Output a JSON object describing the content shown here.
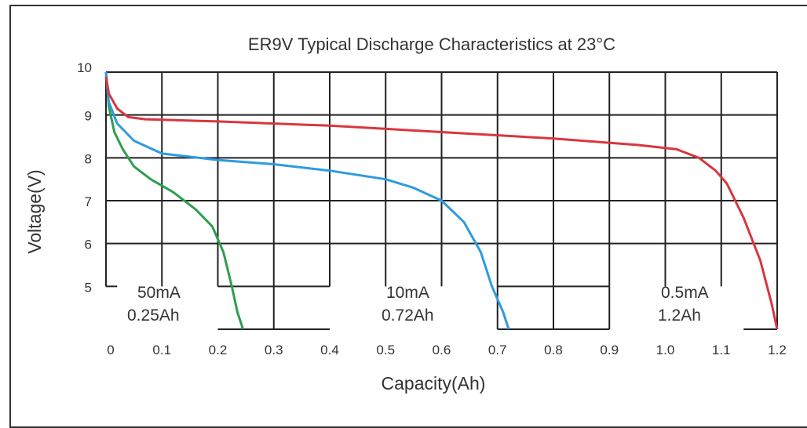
{
  "chart_data": {
    "type": "line",
    "title": "ER9V Typical Discharge Characteristics at 23°C",
    "xlabel": "Capacity(Ah)",
    "ylabel": "Voltage(V)",
    "xlim": [
      0,
      1.2
    ],
    "ylim": [
      4,
      10
    ],
    "x_ticks": [
      "0",
      "0.1",
      "0.2",
      "0.3",
      "0.4",
      "0.5",
      "0.6",
      "0.7",
      "0.8",
      "0.9",
      "1.0",
      "1.1",
      "1.2"
    ],
    "y_ticks": [
      "5",
      "6",
      "7",
      "8",
      "9",
      "10"
    ],
    "grid": true,
    "series": [
      {
        "color": "#2e9e4f",
        "x": [
          0,
          0.005,
          0.015,
          0.03,
          0.05,
          0.08,
          0.12,
          0.16,
          0.19,
          0.21,
          0.225,
          0.235,
          0.245
        ],
        "y": [
          10,
          9.2,
          8.6,
          8.2,
          7.8,
          7.5,
          7.2,
          6.8,
          6.4,
          5.8,
          5.0,
          4.4,
          4.0
        ]
      },
      {
        "color": "#2d9be0",
        "x": [
          0,
          0.005,
          0.02,
          0.05,
          0.1,
          0.2,
          0.3,
          0.4,
          0.5,
          0.55,
          0.6,
          0.64,
          0.67,
          0.69,
          0.71,
          0.72
        ],
        "y": [
          10,
          9.3,
          8.8,
          8.4,
          8.1,
          7.95,
          7.85,
          7.7,
          7.5,
          7.3,
          7.0,
          6.5,
          5.8,
          5.0,
          4.4,
          4.0
        ]
      },
      {
        "color": "#d9363e",
        "x": [
          0,
          0.005,
          0.02,
          0.04,
          0.07,
          0.2,
          0.4,
          0.6,
          0.8,
          0.95,
          1.02,
          1.06,
          1.09,
          1.11,
          1.14,
          1.17,
          1.19,
          1.2
        ],
        "y": [
          9.9,
          9.5,
          9.15,
          8.95,
          8.9,
          8.85,
          8.75,
          8.6,
          8.45,
          8.3,
          8.2,
          8.0,
          7.7,
          7.4,
          6.6,
          5.6,
          4.6,
          4.0
        ]
      }
    ],
    "annotations": [
      {
        "current": "50mA",
        "capacity": "0.25Ah"
      },
      {
        "current": "10mA",
        "capacity": "0.72Ah"
      },
      {
        "current": "0.5mA",
        "capacity": "1.2Ah"
      }
    ]
  }
}
